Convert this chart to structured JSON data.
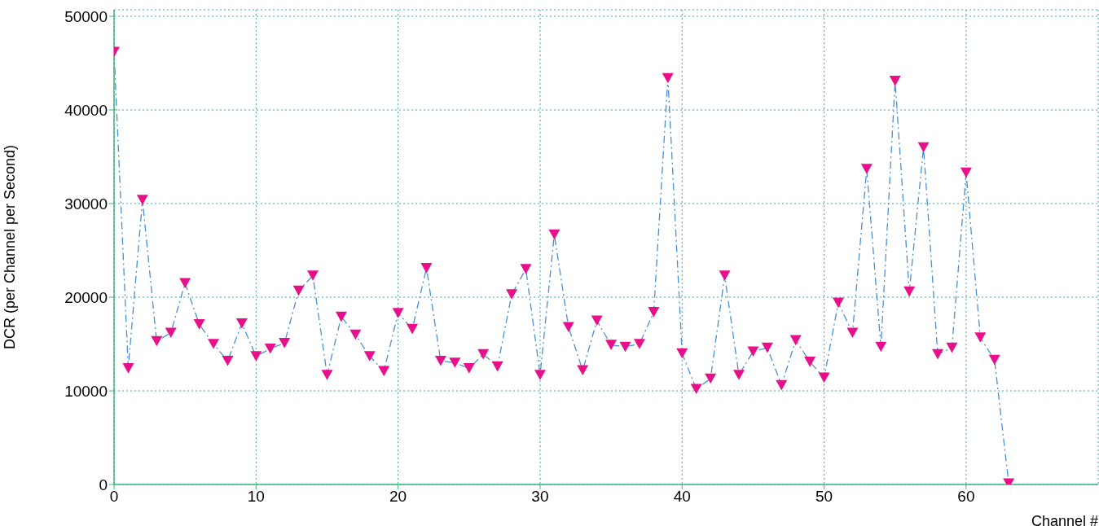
{
  "chart_data": {
    "type": "line",
    "xlabel": "Channel #",
    "ylabel": "DCR (per Channel per Second)",
    "x": [
      0,
      1,
      2,
      3,
      4,
      5,
      6,
      7,
      8,
      9,
      10,
      11,
      12,
      13,
      14,
      15,
      16,
      17,
      18,
      19,
      20,
      21,
      22,
      23,
      24,
      25,
      26,
      27,
      28,
      29,
      30,
      31,
      32,
      33,
      34,
      35,
      36,
      37,
      38,
      39,
      40,
      41,
      42,
      43,
      44,
      45,
      46,
      47,
      48,
      49,
      50,
      51,
      52,
      53,
      54,
      55,
      56,
      57,
      58,
      59,
      60,
      61,
      62,
      63
    ],
    "series": [
      {
        "type": "line",
        "color": "#4a90d0",
        "marker": "none",
        "line_style": "dashed",
        "values": [
          46200,
          12400,
          30400,
          15300,
          16200,
          21500,
          17100,
          15000,
          13200,
          17200,
          13700,
          14500,
          15100,
          20700,
          22300,
          11700,
          17900,
          16000,
          13700,
          12100,
          18300,
          16600,
          23100,
          13200,
          13000,
          12400,
          13900,
          12600,
          20300,
          23000,
          11700,
          26700,
          16800,
          12200,
          17500,
          14900,
          14700,
          15000,
          18400,
          43400,
          14000,
          10200,
          11300,
          22300,
          11700,
          14200,
          14600,
          10600,
          15400,
          13100,
          11400,
          19400,
          16200,
          33700,
          14700,
          43100,
          20600,
          36000,
          13900,
          14600,
          33300,
          15700,
          13300,
          100
        ]
      },
      {
        "type": "scatter",
        "color": "#e8108a",
        "marker": "triangle",
        "values": [
          46200,
          12400,
          30400,
          15300,
          16200,
          21500,
          17100,
          15000,
          13200,
          17200,
          13700,
          14500,
          15100,
          20700,
          22300,
          11700,
          17900,
          16000,
          13700,
          12100,
          18300,
          16600,
          23100,
          13200,
          13000,
          12400,
          13900,
          12600,
          20300,
          23000,
          11700,
          26700,
          16800,
          12200,
          17500,
          14900,
          14700,
          15000,
          18400,
          43400,
          14000,
          10200,
          11300,
          22300,
          11700,
          14200,
          14600,
          10600,
          15400,
          13100,
          11400,
          19400,
          16200,
          33700,
          14700,
          43100,
          20600,
          36000,
          13900,
          14600,
          33300,
          15700,
          13300,
          100
        ]
      }
    ],
    "xlim": [
      0,
      69.3
    ],
    "xticks": [
      0,
      10,
      20,
      30,
      40,
      50,
      60
    ],
    "ylim": [
      0,
      50700
    ],
    "yticks": [
      0,
      10000,
      20000,
      30000,
      40000,
      50000
    ],
    "grid": true
  }
}
